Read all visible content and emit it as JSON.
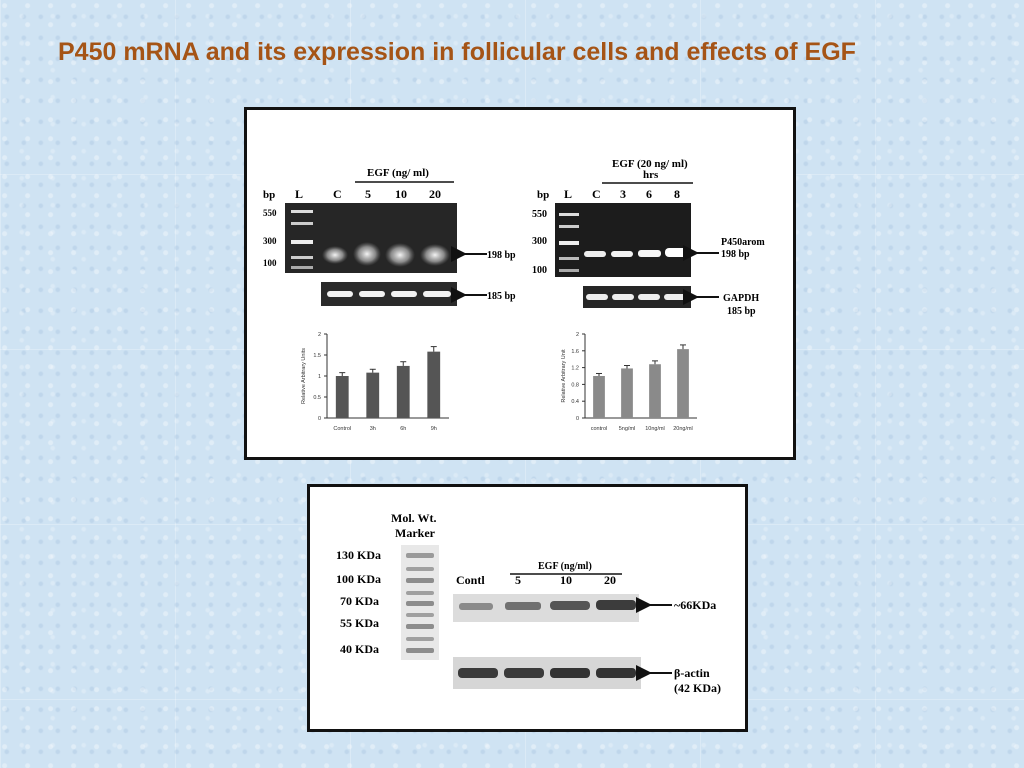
{
  "page": {
    "title": "P450 mRNA  and its expression in follicular cells and effects of EGF"
  },
  "gel_left": {
    "header": "EGF (ng/ ml)",
    "bp_label": "bp",
    "lanes": [
      "L",
      "C",
      "5",
      "10",
      "20"
    ],
    "ladder_marks": [
      "550",
      "300",
      "100"
    ],
    "band1_label": "198 bp",
    "band2_label": "185 bp"
  },
  "gel_right": {
    "header_line1": "EGF (20 ng/ ml)",
    "header_line2": "hrs",
    "bp_label": "bp",
    "lanes": [
      "L",
      "C",
      "3",
      "6",
      "8"
    ],
    "ladder_marks": [
      "550",
      "300",
      "100"
    ],
    "band1_label_line1": "P450arom",
    "band1_label_line2": "198 bp",
    "band2_label_line1": "GAPDH",
    "band2_label_line2": "185 bp"
  },
  "western": {
    "marker_title_line1": "Mol. Wt.",
    "marker_title_line2": "Marker",
    "marker_labels": [
      "130 KDa",
      "100 KDa",
      "70 KDa",
      "55 KDa",
      "40 KDa"
    ],
    "header": "EGF (ng/ml)",
    "lanes": [
      "Contl",
      "5",
      "10",
      "20"
    ],
    "band1_label": "~66KDa",
    "band2_label_line1": "β-actin",
    "band2_label_line2": "(42 KDa)"
  },
  "chart_data": [
    {
      "type": "bar",
      "categories": [
        "Control",
        "3h",
        "6h",
        "9h"
      ],
      "values": [
        1.0,
        1.08,
        1.24,
        1.58
      ],
      "errors": [
        0.08,
        0.08,
        0.1,
        0.12
      ],
      "title": "",
      "xlabel": "",
      "ylabel": "Relative Arbitrary Units",
      "ylim": [
        0,
        2
      ],
      "yticks": [
        "0",
        "0.5",
        "1",
        "1.5",
        "2"
      ],
      "color": "#555555"
    },
    {
      "type": "bar",
      "categories": [
        "control",
        "5ng/ml",
        "10ng/ml",
        "20ng/ml"
      ],
      "values": [
        1.0,
        1.18,
        1.28,
        1.64
      ],
      "errors": [
        0.06,
        0.07,
        0.08,
        0.1
      ],
      "title": "",
      "xlabel": "",
      "ylabel": "Relative Arbitrary Unit",
      "ylim": [
        0,
        2
      ],
      "yticks": [
        "0",
        "0.4",
        "0.8",
        "1.2",
        "1.6",
        "2"
      ],
      "color": "#8a8a8a"
    }
  ]
}
